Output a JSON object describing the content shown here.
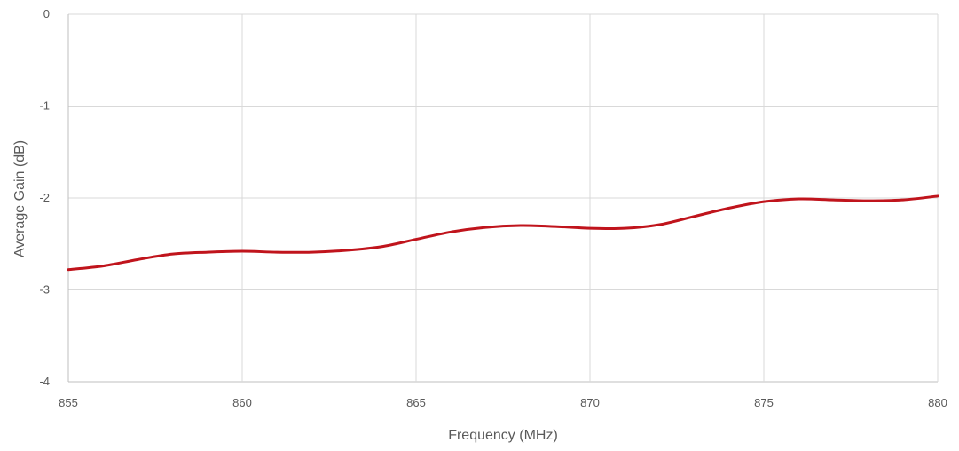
{
  "chart_data": {
    "type": "line",
    "title": "",
    "xlabel": "Frequency (MHz)",
    "ylabel": "Average Gain (dB)",
    "xlim": [
      855,
      880
    ],
    "ylim": [
      -4,
      0
    ],
    "xticks": [
      855,
      860,
      865,
      870,
      875,
      880
    ],
    "yticks": [
      0,
      -1,
      -2,
      -3,
      -4
    ],
    "grid": true,
    "legend": "none",
    "series": [
      {
        "color": "#c0141c",
        "x": [
          855,
          856,
          857,
          858,
          859,
          860,
          861,
          862,
          863,
          864,
          865,
          866,
          867,
          868,
          869,
          870,
          871,
          872,
          873,
          874,
          875,
          876,
          877,
          878,
          879,
          880
        ],
        "y": [
          -2.78,
          -2.74,
          -2.67,
          -2.61,
          -2.59,
          -2.58,
          -2.59,
          -2.59,
          -2.57,
          -2.53,
          -2.45,
          -2.37,
          -2.32,
          -2.3,
          -2.31,
          -2.33,
          -2.33,
          -2.29,
          -2.2,
          -2.11,
          -2.04,
          -2.01,
          -2.02,
          -2.03,
          -2.02,
          -1.98
        ]
      }
    ]
  }
}
